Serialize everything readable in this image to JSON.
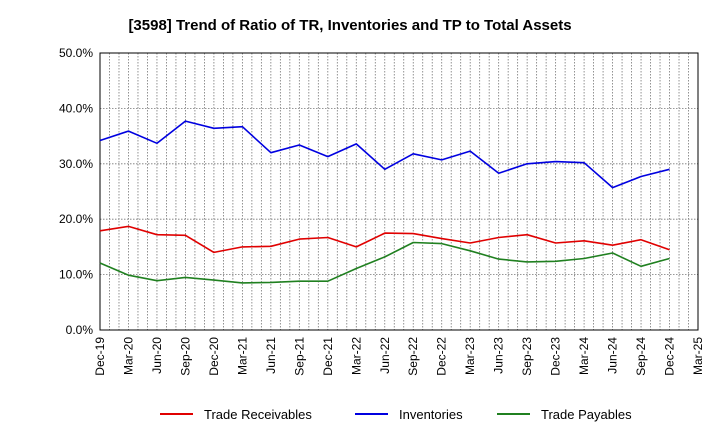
{
  "chart_data": {
    "type": "line",
    "title": "[3598]  Trend of Ratio of TR, Inventories and TP to Total Assets",
    "xlabel": "",
    "ylabel": "",
    "ylim": [
      0,
      50
    ],
    "yticks": [
      "0.0%",
      "10.0%",
      "20.0%",
      "30.0%",
      "40.0%",
      "50.0%"
    ],
    "x_tick_labels": [
      "Dec-19",
      "Mar-20",
      "Jun-20",
      "Sep-20",
      "Dec-20",
      "Mar-21",
      "Jun-21",
      "Sep-21",
      "Dec-21",
      "Mar-22",
      "Jun-22",
      "Sep-22",
      "Dec-22",
      "Mar-23",
      "Jun-23",
      "Sep-23",
      "Dec-23",
      "Mar-24",
      "Jun-24",
      "Sep-24",
      "Dec-24",
      "Mar-25"
    ],
    "x": [
      "Dec-19",
      "Mar-20",
      "Jun-20",
      "Sep-20",
      "Dec-20",
      "Mar-21",
      "Jun-21",
      "Sep-21",
      "Dec-21",
      "Mar-22",
      "Jun-22",
      "Sep-22",
      "Dec-22",
      "Mar-23",
      "Jun-23",
      "Sep-23",
      "Dec-23",
      "Mar-24",
      "Jun-24",
      "Sep-24",
      "Dec-24"
    ],
    "grid": true,
    "legend_position": "bottom",
    "series": [
      {
        "name": "Trade Receivables",
        "color": "#e00000",
        "values": [
          17.9,
          18.7,
          17.2,
          17.1,
          14.0,
          15.0,
          15.1,
          16.4,
          16.7,
          15.0,
          17.5,
          17.4,
          16.5,
          15.7,
          16.7,
          17.2,
          15.7,
          16.1,
          15.3,
          16.3,
          14.5
        ]
      },
      {
        "name": "Inventories",
        "color": "#0000e0",
        "values": [
          34.2,
          35.9,
          33.7,
          37.7,
          36.4,
          36.7,
          32.0,
          33.4,
          31.3,
          33.6,
          29.0,
          31.8,
          30.7,
          32.3,
          28.3,
          30.0,
          30.4,
          30.2,
          25.7,
          27.7,
          29.0
        ]
      },
      {
        "name": "Trade Payables",
        "color": "#208020",
        "values": [
          12.1,
          9.9,
          8.9,
          9.5,
          9.0,
          8.5,
          8.6,
          8.8,
          8.8,
          11.1,
          13.2,
          15.8,
          15.6,
          14.3,
          12.8,
          12.3,
          12.4,
          12.9,
          13.9,
          11.5,
          12.9
        ]
      }
    ]
  }
}
